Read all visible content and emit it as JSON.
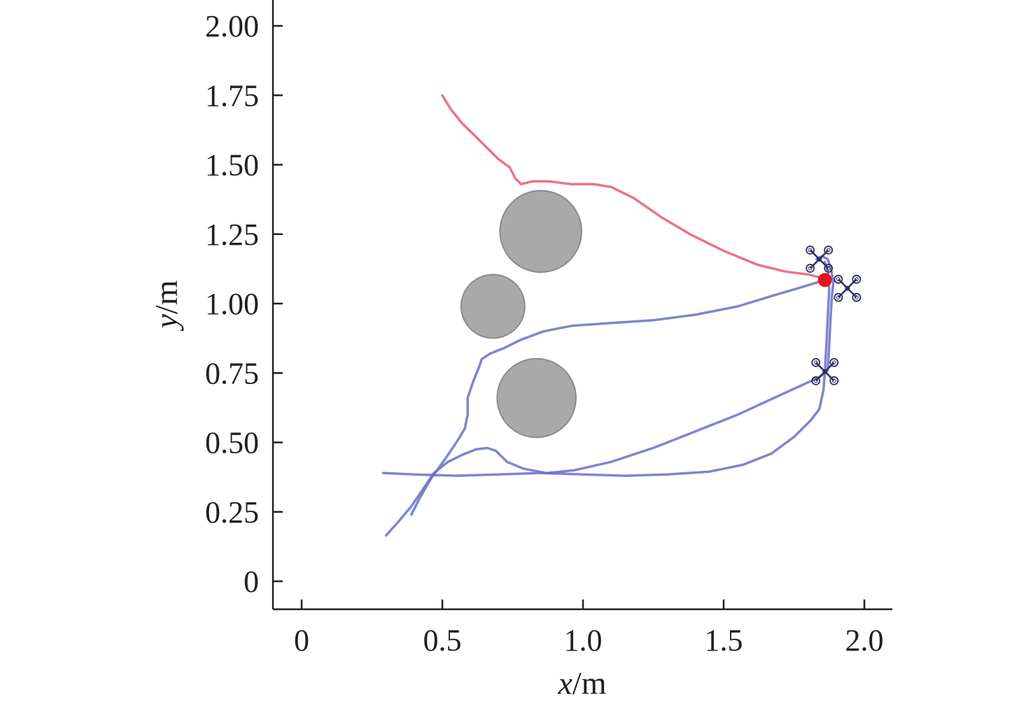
{
  "chart_data": {
    "type": "scatter",
    "title": "",
    "xlabel": {
      "var": "x",
      "unit": "/m"
    },
    "ylabel": {
      "var": "y",
      "unit": "/m"
    },
    "xlim": [
      -0.1,
      2.1
    ],
    "ylim": [
      -0.1,
      2.1
    ],
    "xticks": [
      0,
      0.5,
      1.0,
      1.5,
      2.0
    ],
    "xtick_labels": [
      "0",
      "0.5",
      "1.0",
      "1.5",
      "2.0"
    ],
    "yticks": [
      0,
      0.25,
      0.5,
      0.75,
      1.0,
      1.25,
      1.5,
      1.75,
      2.0
    ],
    "ytick_labels": [
      "0",
      "0.25",
      "0.50",
      "0.75",
      "1.00",
      "1.25",
      "1.50",
      "1.75",
      "2.00"
    ],
    "grid": false,
    "legend": "none",
    "colors": {
      "target_path": "#e85a6e",
      "drone_path": "#6a6fc9",
      "obstacle_fill": "#a9a9a9",
      "obstacle_stroke": "#8a8a8a",
      "target": "#e0141e",
      "drone_icon": "#2d2f5e"
    },
    "obstacles": [
      {
        "cx": 0.85,
        "cy": 1.26,
        "r": 0.145
      },
      {
        "cx": 0.68,
        "cy": 0.99,
        "r": 0.113
      },
      {
        "cx": 0.835,
        "cy": 0.66,
        "r": 0.14
      }
    ],
    "target_point": {
      "x": 1.86,
      "y": 1.085
    },
    "drones": [
      {
        "x": 1.84,
        "y": 1.16
      },
      {
        "x": 1.94,
        "y": 1.055
      },
      {
        "x": 1.86,
        "y": 0.755
      }
    ],
    "series": [
      {
        "role": "target",
        "points": [
          [
            0.5,
            1.75
          ],
          [
            0.53,
            1.7
          ],
          [
            0.57,
            1.65
          ],
          [
            0.62,
            1.6
          ],
          [
            0.66,
            1.56
          ],
          [
            0.7,
            1.52
          ],
          [
            0.74,
            1.49
          ],
          [
            0.76,
            1.45
          ],
          [
            0.78,
            1.43
          ],
          [
            0.82,
            1.44
          ],
          [
            0.88,
            1.44
          ],
          [
            0.96,
            1.43
          ],
          [
            1.04,
            1.43
          ],
          [
            1.1,
            1.42
          ],
          [
            1.18,
            1.38
          ],
          [
            1.28,
            1.31
          ],
          [
            1.38,
            1.25
          ],
          [
            1.5,
            1.19
          ],
          [
            1.62,
            1.14
          ],
          [
            1.72,
            1.115
          ],
          [
            1.8,
            1.105
          ],
          [
            1.86,
            1.09
          ]
        ]
      },
      {
        "role": "drone-1",
        "points": [
          [
            0.3,
            0.165
          ],
          [
            0.34,
            0.21
          ],
          [
            0.39,
            0.27
          ],
          [
            0.43,
            0.33
          ],
          [
            0.47,
            0.39
          ],
          [
            0.52,
            0.43
          ],
          [
            0.57,
            0.455
          ],
          [
            0.62,
            0.475
          ],
          [
            0.66,
            0.48
          ],
          [
            0.69,
            0.47
          ],
          [
            0.73,
            0.43
          ],
          [
            0.79,
            0.405
          ],
          [
            0.87,
            0.39
          ],
          [
            0.97,
            0.4
          ],
          [
            1.1,
            0.43
          ],
          [
            1.25,
            0.48
          ],
          [
            1.4,
            0.54
          ],
          [
            1.55,
            0.6
          ],
          [
            1.7,
            0.67
          ],
          [
            1.84,
            0.735
          ],
          [
            1.87,
            0.76
          ],
          [
            1.875,
            0.85
          ],
          [
            1.88,
            0.95
          ],
          [
            1.885,
            1.03
          ],
          [
            1.89,
            1.08
          ],
          [
            1.88,
            1.13
          ],
          [
            1.87,
            1.16
          ],
          [
            1.85,
            1.17
          ],
          [
            1.83,
            1.16
          ]
        ]
      },
      {
        "role": "drone-2",
        "points": [
          [
            0.39,
            0.24
          ],
          [
            0.42,
            0.3
          ],
          [
            0.46,
            0.37
          ],
          [
            0.51,
            0.44
          ],
          [
            0.55,
            0.5
          ],
          [
            0.58,
            0.55
          ],
          [
            0.59,
            0.6
          ],
          [
            0.59,
            0.66
          ],
          [
            0.61,
            0.72
          ],
          [
            0.63,
            0.77
          ],
          [
            0.64,
            0.8
          ],
          [
            0.67,
            0.82
          ],
          [
            0.72,
            0.84
          ],
          [
            0.78,
            0.87
          ],
          [
            0.86,
            0.9
          ],
          [
            0.96,
            0.92
          ],
          [
            1.1,
            0.93
          ],
          [
            1.25,
            0.94
          ],
          [
            1.4,
            0.96
          ],
          [
            1.55,
            0.99
          ],
          [
            1.68,
            1.03
          ],
          [
            1.78,
            1.06
          ],
          [
            1.86,
            1.085
          ]
        ]
      },
      {
        "role": "drone-3",
        "points": [
          [
            0.29,
            0.39
          ],
          [
            0.4,
            0.385
          ],
          [
            0.55,
            0.38
          ],
          [
            0.7,
            0.385
          ],
          [
            0.85,
            0.39
          ],
          [
            1.0,
            0.385
          ],
          [
            1.15,
            0.38
          ],
          [
            1.3,
            0.385
          ],
          [
            1.45,
            0.395
          ],
          [
            1.57,
            0.42
          ],
          [
            1.67,
            0.46
          ],
          [
            1.75,
            0.52
          ],
          [
            1.81,
            0.58
          ],
          [
            1.84,
            0.62
          ],
          [
            1.855,
            0.69
          ],
          [
            1.86,
            0.76
          ],
          [
            1.865,
            0.85
          ],
          [
            1.87,
            0.95
          ],
          [
            1.875,
            1.05
          ],
          [
            1.87,
            1.12
          ],
          [
            1.86,
            1.15
          ]
        ]
      }
    ]
  }
}
